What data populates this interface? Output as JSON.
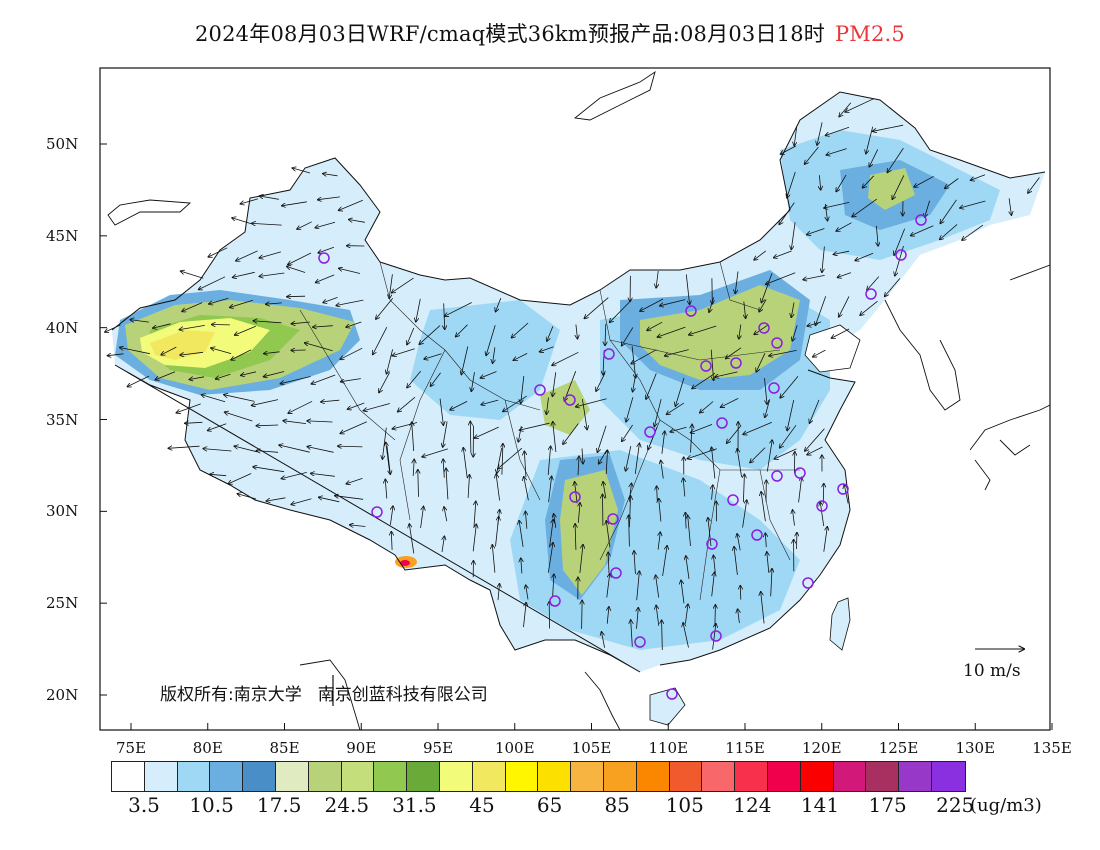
{
  "title": {
    "main": "2024年08月03日WRF/cmaq模式36km预报产品:08月03日18时",
    "species": "PM2.5"
  },
  "axes": {
    "x_ticks": [
      "75E",
      "80E",
      "85E",
      "90E",
      "95E",
      "100E",
      "105E",
      "110E",
      "115E",
      "120E",
      "125E",
      "130E",
      "135E"
    ],
    "y_ticks": [
      "50N",
      "45N",
      "40N",
      "35N",
      "30N",
      "25N",
      "20N"
    ]
  },
  "copyright": {
    "label": "版权所有:",
    "org1": "南京大学",
    "org2": "南京创蓝科技有限公司"
  },
  "wind_reference": {
    "label": "10 m/s"
  },
  "colorbar": {
    "colors": [
      "#ffffff",
      "#d6eefb",
      "#9fd8f5",
      "#6aafe0",
      "#4a8ec8",
      "#e0ebc2",
      "#b8d27a",
      "#c4de7c",
      "#90c850",
      "#6aaa38",
      "#f2fb7a",
      "#f2e860",
      "#fff600",
      "#fce000",
      "#f8b440",
      "#f8a020",
      "#fb8600",
      "#f05a2c",
      "#f8686a",
      "#f8304c",
      "#f0004c",
      "#fb0000",
      "#d21878",
      "#a83060",
      "#9838c8",
      "#8a30e0"
    ],
    "labels": [
      "3.5",
      "10.5",
      "17.5",
      "24.5",
      "31.5",
      "45",
      "65",
      "85",
      "105",
      "124",
      "141",
      "175",
      "225"
    ],
    "unit": "(ug/m3)"
  },
  "legend_palette": {
    "land_outline": "#111111",
    "station_marker": "#8a1ee0"
  }
}
